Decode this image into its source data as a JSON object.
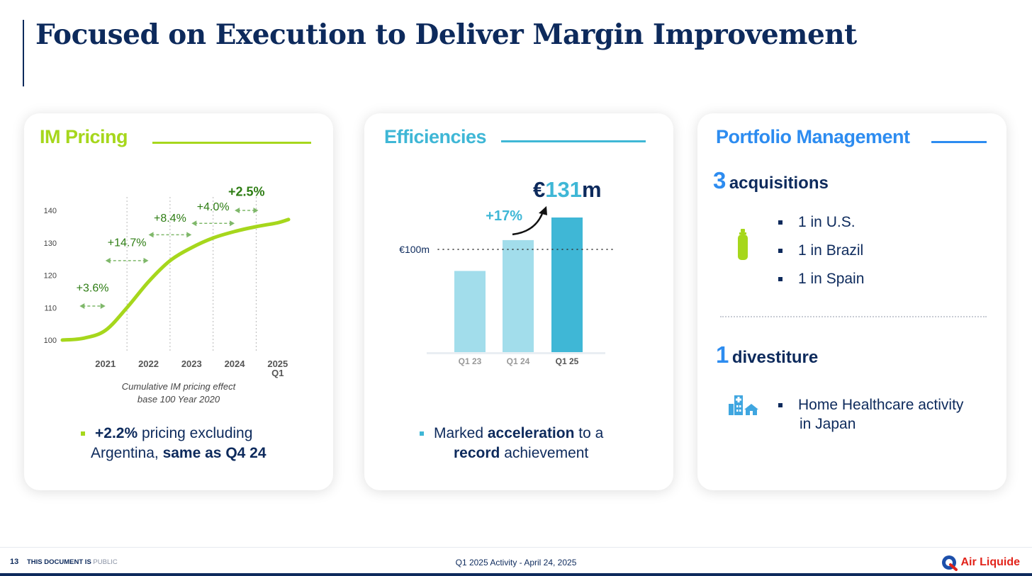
{
  "page": {
    "title": "Focused on Execution to Deliver Margin Improvement"
  },
  "colors": {
    "navy": "#0d2a5c",
    "lime": "#a6d71c",
    "green_dark": "#2e7d14",
    "green_arrow": "#7fb86a",
    "teal": "#3fb7d6",
    "teal_light": "#9ddbea",
    "blue": "#2d8cf0"
  },
  "cards": {
    "im_pricing": {
      "title": "IM Pricing",
      "caption_line1": "Cumulative IM pricing effect",
      "caption_line2": "base 100 Year 2020",
      "bullet_strong1": "+2.2%",
      "bullet_text1": " pricing excluding",
      "bullet_text2": "Argentina, ",
      "bullet_strong2": "same as Q4 24"
    },
    "efficiencies": {
      "title": "Efficiencies",
      "headline_prefix": "€",
      "headline_number": "131",
      "headline_suffix": "m",
      "growth_label": "+17%",
      "reference_label": "€100m",
      "bullet_text1": "Marked ",
      "bullet_strong1": "acceleration",
      "bullet_text2": " to a",
      "bullet_strong2": "record",
      "bullet_text3": " achievement"
    },
    "portfolio": {
      "title": "Portfolio Management",
      "acq_count": "3",
      "acq_label": "acquisitions",
      "acq_items": [
        "1 in U.S.",
        "1 in Brazil",
        "1 in Spain"
      ],
      "div_count": "1",
      "div_label": "divestiture",
      "div_item_line1": "Home Healthcare activity",
      "div_item_line2": "in Japan",
      "acq_icon": "gas-cylinder-icon",
      "div_icon": "hospital-house-icon"
    }
  },
  "chart_data": [
    {
      "type": "line",
      "ylim": [
        100,
        140
      ],
      "yticks": [
        100,
        110,
        120,
        130,
        140
      ],
      "x_labels": [
        "2021",
        "2022",
        "2023",
        "2024",
        "2025\nQ1"
      ],
      "series": [
        {
          "x": [
            2020.0,
            2020.5,
            2021.0,
            2021.5,
            2022.0,
            2022.5,
            2023.0,
            2023.5,
            2024.0,
            2024.5,
            2025.0,
            2025.25
          ],
          "y": [
            100.0,
            100.6,
            103.0,
            110.0,
            118.0,
            124.5,
            128.5,
            131.5,
            133.5,
            135.0,
            136.2,
            137.2
          ]
        }
      ],
      "annotations": [
        {
          "label": "+3.6%",
          "x_from": 2020.4,
          "x_to": 2021.0,
          "y": 110.5,
          "y_label": 115
        },
        {
          "label": "+14.7%",
          "x_from": 2021.0,
          "x_to": 2022.0,
          "y": 124.5,
          "y_label": 129
        },
        {
          "label": "+8.4%",
          "x_from": 2022.0,
          "x_to": 2023.0,
          "y": 132.5,
          "y_label": 136.5
        },
        {
          "label": "+4.0%",
          "x_from": 2023.0,
          "x_to": 2024.0,
          "y": 136.0,
          "y_label": 140
        },
        {
          "label": "+2.5%",
          "x_from": 2024.0,
          "x_to": 2024.55,
          "y": 140.0,
          "y_label": 144.5
        }
      ]
    },
    {
      "type": "bar",
      "categories": [
        "Q1 23",
        "Q1 24",
        "Q1 25"
      ],
      "values": [
        79,
        109,
        131
      ],
      "reference": 100,
      "ylim": [
        0,
        131
      ]
    }
  ],
  "footer": {
    "page_number": "13",
    "classification": "THIS DOCUMENT IS",
    "classification_value": "PUBLIC",
    "center_text": "Q1 2025 Activity  - April 24, 2025",
    "logo_text": "Air Liquide"
  }
}
